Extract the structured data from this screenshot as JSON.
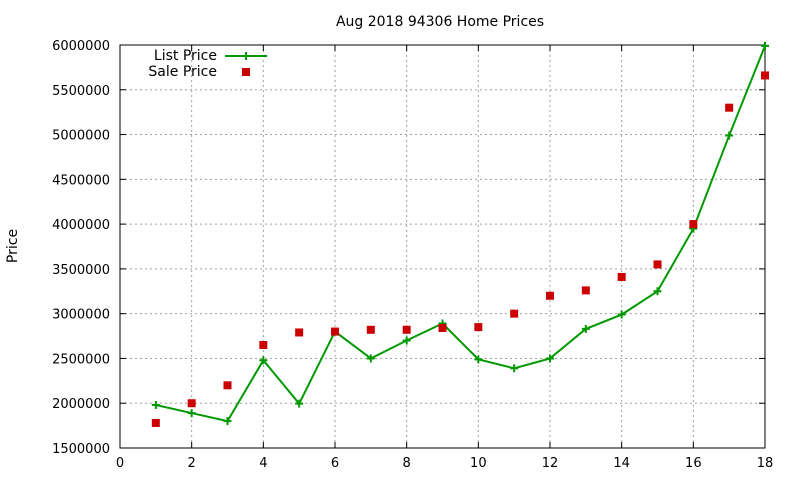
{
  "chart_data": {
    "type": "line",
    "title": "Aug 2018 94306 Home Prices",
    "xlabel": "",
    "ylabel": "Price",
    "xlim": [
      0,
      18
    ],
    "ylim": [
      1500000,
      6000000
    ],
    "xticks": [
      0,
      2,
      4,
      6,
      8,
      10,
      12,
      14,
      16,
      18
    ],
    "yticks": [
      1500000,
      2000000,
      2500000,
      3000000,
      3500000,
      4000000,
      4500000,
      5000000,
      5500000,
      6000000
    ],
    "xtick_labels": [
      "0",
      "2",
      "4",
      "6",
      "8",
      "10",
      "12",
      "14",
      "16",
      "18"
    ],
    "ytick_labels": [
      "1500000",
      "2000000",
      "2500000",
      "3000000",
      "3500000",
      "4000000",
      "4500000",
      "5000000",
      "5500000",
      "6000000"
    ],
    "grid": true,
    "legend_position": "top-left",
    "series": [
      {
        "name": "List Price",
        "style": "line-plus",
        "color": "#009900",
        "x": [
          1,
          2,
          3,
          4,
          5,
          6,
          7,
          8,
          9,
          10,
          11,
          12,
          13,
          14,
          15,
          16,
          17,
          18
        ],
        "y": [
          1980000,
          1890000,
          1800000,
          2480000,
          1995000,
          2800000,
          2500000,
          2700000,
          2890000,
          2490000,
          2390000,
          2500000,
          2830000,
          2990000,
          3250000,
          3950000,
          4990000,
          5990000
        ]
      },
      {
        "name": "Sale Price",
        "style": "square",
        "color": "#cc0000",
        "x": [
          1,
          2,
          3,
          4,
          5,
          6,
          7,
          8,
          9,
          10,
          11,
          12,
          13,
          14,
          15,
          16,
          17,
          18
        ],
        "y": [
          1780000,
          2000000,
          2200000,
          2650000,
          2790000,
          2800000,
          2820000,
          2820000,
          2840000,
          2850000,
          3000000,
          3200000,
          3260000,
          3410000,
          3550000,
          4000000,
          5300000,
          5660000
        ]
      }
    ]
  }
}
